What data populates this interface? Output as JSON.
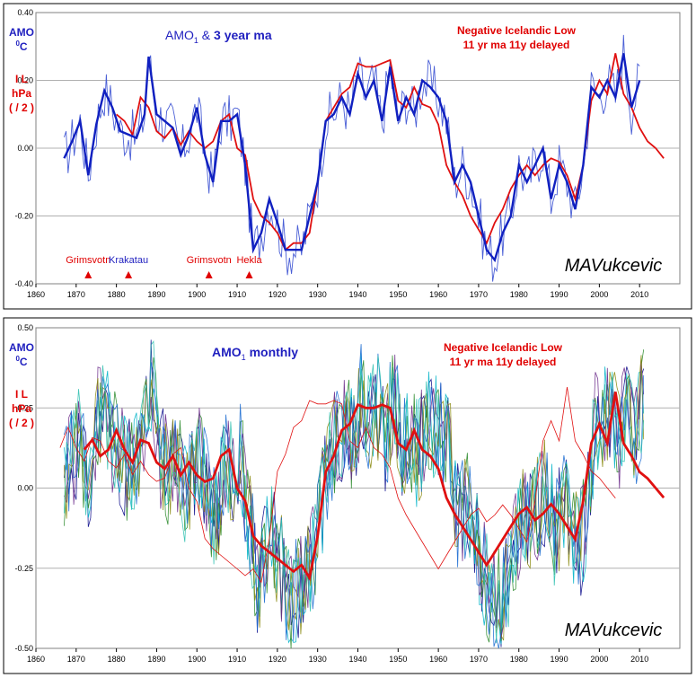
{
  "charts": [
    {
      "title_parts": {
        "a": "AMO",
        "sub": "1",
        "b": " & ",
        "c": "3 year ma"
      },
      "ylabel_amo": {
        "line1": "AMO",
        "line2_sup": "0",
        "line2": "C"
      },
      "ylabel_il": {
        "line1": "I L",
        "line2": "hPa",
        "line3": "( / 2 )"
      },
      "legend_il": {
        "line1": "Negative Icelandic Low",
        "line2": "11 yr ma 11y delayed"
      },
      "signature": "MAVukcevic",
      "volcanoes": [
        {
          "name": "Grimsvotn",
          "year": 1873,
          "color": "#e00000"
        },
        {
          "name": "Krakatau",
          "year": 1883,
          "color": "#1f1fbf"
        },
        {
          "name": "Grimsvotn",
          "year": 1903,
          "color": "#e00000"
        },
        {
          "name": "Hekla",
          "year": 1913,
          "color": "#e00000"
        }
      ]
    },
    {
      "title_parts": {
        "a": "AMO",
        "sub": "1",
        "b": " monthly"
      },
      "ylabel_amo": {
        "line1": "AMO",
        "line2_sup": "0",
        "line2": "C"
      },
      "ylabel_il": {
        "line1": "I L",
        "line2": "hPa",
        "line3": "( / 2 )"
      },
      "legend_il": {
        "line1": "Negative Icelandic Low",
        "line2": "11 yr ma 11y delayed"
      },
      "signature": "MAVukcevic"
    }
  ],
  "colors": {
    "amo_thin": "#4a5fd6",
    "amo_thick": "#1020c0",
    "il": "#e01010",
    "monthly_palette": [
      "#0a0a8a",
      "#00b3c8",
      "#2a8a2a",
      "#6a2a8a",
      "#8a8a10",
      "#1a6ad0",
      "#30c0b0"
    ]
  },
  "chart_data": [
    {
      "type": "line",
      "x_ticks": [
        "1860",
        "1870",
        "1880",
        "1890",
        "1900",
        "1910",
        "1920",
        "1930",
        "1940",
        "1950",
        "1960",
        "1970",
        "1980",
        "1990",
        "2000",
        "2010"
      ],
      "y_ticks": [
        "0.40",
        "0.20",
        "0.00",
        "-0.20",
        "-0.40"
      ],
      "xlim": [
        1860,
        2020
      ],
      "ylim": [
        -0.4,
        0.4
      ],
      "grid": "horizontal",
      "series": [
        {
          "name": "AMO1 3 year ma",
          "x": [
            1867,
            1869,
            1871,
            1873,
            1875,
            1877,
            1879,
            1881,
            1883,
            1885,
            1887,
            1888,
            1890,
            1892,
            1894,
            1896,
            1898,
            1900,
            1902,
            1904,
            1906,
            1908,
            1910,
            1912,
            1914,
            1916,
            1918,
            1920,
            1922,
            1924,
            1926,
            1928,
            1930,
            1932,
            1934,
            1936,
            1938,
            1940,
            1942,
            1944,
            1946,
            1948,
            1950,
            1952,
            1954,
            1956,
            1958,
            1960,
            1962,
            1964,
            1966,
            1968,
            1970,
            1972,
            1974,
            1976,
            1978,
            1980,
            1982,
            1984,
            1986,
            1988,
            1990,
            1992,
            1994,
            1996,
            1998,
            2000,
            2002,
            2004,
            2006,
            2008,
            2010
          ],
          "y": [
            -0.03,
            0.02,
            0.08,
            -0.08,
            0.07,
            0.17,
            0.12,
            0.05,
            0.04,
            0.03,
            0.1,
            0.27,
            0.1,
            0.08,
            0.06,
            -0.02,
            0.04,
            0.12,
            -0.02,
            -0.1,
            0.08,
            0.08,
            0.1,
            -0.05,
            -0.3,
            -0.25,
            -0.15,
            -0.22,
            -0.3,
            -0.3,
            -0.3,
            -0.2,
            -0.1,
            0.08,
            0.1,
            0.15,
            0.1,
            0.22,
            0.15,
            0.2,
            0.08,
            0.24,
            0.08,
            0.15,
            0.1,
            0.2,
            0.18,
            0.15,
            0.08,
            -0.1,
            -0.05,
            -0.1,
            -0.2,
            -0.3,
            -0.33,
            -0.25,
            -0.2,
            -0.05,
            -0.1,
            -0.05,
            0.0,
            -0.15,
            -0.05,
            -0.1,
            -0.18,
            -0.05,
            0.18,
            0.15,
            0.2,
            0.15,
            0.28,
            0.12,
            0.2
          ]
        },
        {
          "name": "Negative Icelandic Low 11 yr ma 11y delayed",
          "x": [
            1880,
            1882,
            1884,
            1886,
            1888,
            1890,
            1892,
            1894,
            1896,
            1898,
            1900,
            1902,
            1904,
            1906,
            1908,
            1910,
            1912,
            1914,
            1916,
            1918,
            1920,
            1922,
            1924,
            1926,
            1928,
            1930,
            1932,
            1934,
            1936,
            1938,
            1940,
            1942,
            1944,
            1946,
            1948,
            1950,
            1952,
            1954,
            1956,
            1958,
            1960,
            1962,
            1964,
            1966,
            1968,
            1970,
            1972,
            1974,
            1976,
            1978,
            1980,
            1982,
            1984,
            1986,
            1988,
            1990,
            1992,
            1994,
            1996,
            1998,
            2000,
            2002,
            2004,
            2006,
            2008,
            2010,
            2012,
            2014,
            2016
          ],
          "y": [
            0.1,
            0.08,
            0.04,
            0.15,
            0.12,
            0.05,
            0.03,
            0.06,
            0.01,
            0.05,
            0.02,
            0.0,
            0.02,
            0.08,
            0.1,
            0.0,
            -0.02,
            -0.15,
            -0.2,
            -0.22,
            -0.25,
            -0.3,
            -0.28,
            -0.28,
            -0.25,
            -0.1,
            0.08,
            0.12,
            0.16,
            0.18,
            0.25,
            0.24,
            0.24,
            0.25,
            0.26,
            0.14,
            0.12,
            0.18,
            0.13,
            0.12,
            0.07,
            -0.05,
            -0.1,
            -0.14,
            -0.2,
            -0.24,
            -0.28,
            -0.22,
            -0.18,
            -0.12,
            -0.08,
            -0.05,
            -0.08,
            -0.05,
            -0.03,
            -0.04,
            -0.08,
            -0.15,
            -0.05,
            0.14,
            0.2,
            0.16,
            0.28,
            0.16,
            0.12,
            0.06,
            0.02,
            0.0,
            -0.03
          ]
        }
      ],
      "annotations": [
        "Grimsvotn",
        "Krakatau",
        "Grimsvotn",
        "Hekla"
      ]
    },
    {
      "type": "line",
      "x_ticks": [
        "1860",
        "1870",
        "1880",
        "1890",
        "1900",
        "1910",
        "1920",
        "1930",
        "1940",
        "1950",
        "1960",
        "1970",
        "1980",
        "1990",
        "2000",
        "2010"
      ],
      "y_ticks": [
        "0.50",
        "0.25",
        "0.00",
        "-0.25",
        "-0.50"
      ],
      "xlim": [
        1860,
        2020
      ],
      "ylim": [
        -0.5,
        0.5
      ],
      "grid": "horizontal",
      "series": [
        {
          "name": "AMO1 monthly",
          "x": [
            1867,
            1869,
            1871,
            1873,
            1875,
            1877,
            1879,
            1881,
            1883,
            1885,
            1887,
            1889,
            1891,
            1893,
            1895,
            1897,
            1899,
            1901,
            1903,
            1905,
            1907,
            1909,
            1911,
            1913,
            1915,
            1917,
            1919,
            1921,
            1923,
            1925,
            1927,
            1929,
            1931,
            1933,
            1935,
            1937,
            1939,
            1941,
            1943,
            1945,
            1947,
            1949,
            1951,
            1953,
            1955,
            1957,
            1959,
            1961,
            1963,
            1965,
            1967,
            1969,
            1971,
            1973,
            1975,
            1977,
            1979,
            1981,
            1983,
            1985,
            1987,
            1989,
            1991,
            1993,
            1995,
            1997,
            1999,
            2001,
            2003,
            2005,
            2007,
            2009,
            2011
          ],
          "y": [
            0.05,
            0.1,
            0.15,
            -0.05,
            0.2,
            0.25,
            0.15,
            0.1,
            0.05,
            0.08,
            0.15,
            0.35,
            0.1,
            0.05,
            0.1,
            0.0,
            0.05,
            0.1,
            -0.05,
            -0.1,
            0.1,
            0.05,
            0.1,
            -0.1,
            -0.3,
            -0.2,
            -0.15,
            -0.25,
            -0.35,
            -0.3,
            -0.3,
            -0.2,
            -0.05,
            0.1,
            0.15,
            0.2,
            0.15,
            0.3,
            0.2,
            0.25,
            0.15,
            0.3,
            0.1,
            0.15,
            0.1,
            0.2,
            0.2,
            0.15,
            0.1,
            -0.1,
            -0.05,
            -0.15,
            -0.25,
            -0.35,
            -0.35,
            -0.3,
            -0.2,
            -0.05,
            -0.1,
            -0.05,
            0.0,
            -0.15,
            -0.05,
            -0.1,
            -0.2,
            -0.05,
            0.2,
            0.2,
            0.25,
            0.15,
            0.3,
            0.15,
            0.3
          ]
        },
        {
          "name": "Negative Icelandic Low 11 yr ma 11y delayed",
          "x": [
            1872,
            1874,
            1876,
            1878,
            1880,
            1882,
            1884,
            1886,
            1888,
            1890,
            1892,
            1894,
            1896,
            1898,
            1900,
            1902,
            1904,
            1906,
            1908,
            1910,
            1912,
            1914,
            1916,
            1918,
            1920,
            1922,
            1924,
            1926,
            1928,
            1930,
            1932,
            1934,
            1936,
            1938,
            1940,
            1942,
            1944,
            1946,
            1948,
            1950,
            1952,
            1954,
            1956,
            1958,
            1960,
            1962,
            1964,
            1966,
            1968,
            1970,
            1972,
            1974,
            1976,
            1978,
            1980,
            1982,
            1984,
            1986,
            1988,
            1990,
            1992,
            1994,
            1996,
            1998,
            2000,
            2002,
            2004,
            2006,
            2008,
            2010,
            2012,
            2014,
            2016
          ],
          "y": [
            0.12,
            0.15,
            0.1,
            0.12,
            0.18,
            0.12,
            0.08,
            0.15,
            0.14,
            0.08,
            0.06,
            0.1,
            0.04,
            0.08,
            0.04,
            0.02,
            0.03,
            0.1,
            0.12,
            0.0,
            -0.04,
            -0.15,
            -0.18,
            -0.2,
            -0.22,
            -0.24,
            -0.26,
            -0.24,
            -0.28,
            -0.15,
            0.05,
            0.1,
            0.18,
            0.2,
            0.26,
            0.25,
            0.25,
            0.26,
            0.25,
            0.14,
            0.12,
            0.18,
            0.12,
            0.1,
            0.06,
            -0.03,
            -0.08,
            -0.12,
            -0.16,
            -0.2,
            -0.24,
            -0.2,
            -0.16,
            -0.12,
            -0.08,
            -0.06,
            -0.1,
            -0.08,
            -0.05,
            -0.08,
            -0.12,
            -0.16,
            -0.04,
            0.14,
            0.2,
            0.14,
            0.3,
            0.14,
            0.1,
            0.05,
            0.03,
            0.0,
            -0.03
          ]
        }
      ]
    }
  ]
}
